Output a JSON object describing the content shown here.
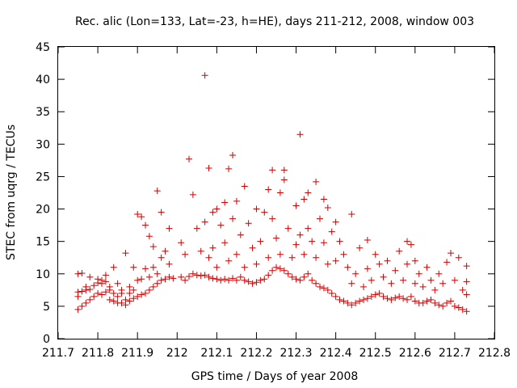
{
  "chart_data": {
    "type": "scatter",
    "title": "Rec. alic (Lon=133, Lat=-23, h=HE), days 211-212, 2008, window 003",
    "xlabel": "GPS time / Days of year 2008",
    "ylabel": "STEC from uqrg / TECUs",
    "xlim": [
      211.7,
      212.8
    ],
    "ylim": [
      0,
      45
    ],
    "x_ticks": [
      "211.7",
      "211.8",
      "211.9",
      "212",
      "212.1",
      "212.2",
      "212.3",
      "212.4",
      "212.5",
      "212.6",
      "212.7",
      "212.8"
    ],
    "y_ticks": [
      "0",
      "5",
      "10",
      "15",
      "20",
      "25",
      "30",
      "35",
      "40",
      "45"
    ],
    "grid": false,
    "legend": "none",
    "marker": "plus",
    "color": "#cc0000",
    "series": [
      {
        "points": [
          [
            211.75,
            4.5
          ],
          [
            211.75,
            6.5
          ],
          [
            211.75,
            7.2
          ],
          [
            211.75,
            10.0
          ],
          [
            211.76,
            5.0
          ],
          [
            211.76,
            7.3
          ],
          [
            211.76,
            10.1
          ],
          [
            211.77,
            5.5
          ],
          [
            211.77,
            7.5
          ],
          [
            211.77,
            8.0
          ],
          [
            211.78,
            6.0
          ],
          [
            211.78,
            7.6
          ],
          [
            211.78,
            9.5
          ],
          [
            211.79,
            6.5
          ],
          [
            211.79,
            8.2
          ],
          [
            211.8,
            7.0
          ],
          [
            211.8,
            8.6
          ],
          [
            211.8,
            9.2
          ],
          [
            211.81,
            6.8
          ],
          [
            211.81,
            8.5
          ],
          [
            211.81,
            9.0
          ],
          [
            211.82,
            7.2
          ],
          [
            211.82,
            8.8
          ],
          [
            211.82,
            9.8
          ],
          [
            211.83,
            6.0
          ],
          [
            211.83,
            7.5
          ],
          [
            211.83,
            8.0
          ],
          [
            211.84,
            5.8
          ],
          [
            211.84,
            7.0
          ],
          [
            211.84,
            11.0
          ],
          [
            211.85,
            5.5
          ],
          [
            211.85,
            6.5
          ],
          [
            211.85,
            8.5
          ],
          [
            211.86,
            5.5
          ],
          [
            211.86,
            7.0
          ],
          [
            211.86,
            7.5
          ],
          [
            211.87,
            5.2
          ],
          [
            211.87,
            6.0
          ],
          [
            211.87,
            13.2
          ],
          [
            211.88,
            5.8
          ],
          [
            211.88,
            7.0
          ],
          [
            211.88,
            8.0
          ],
          [
            211.89,
            6.2
          ],
          [
            211.89,
            7.5
          ],
          [
            211.89,
            11.0
          ],
          [
            211.9,
            6.5
          ],
          [
            211.9,
            9.0
          ],
          [
            211.9,
            19.2
          ],
          [
            211.91,
            6.8
          ],
          [
            211.91,
            9.2
          ],
          [
            211.91,
            18.8
          ],
          [
            211.92,
            7.0
          ],
          [
            211.92,
            10.8
          ],
          [
            211.92,
            17.5
          ],
          [
            211.93,
            7.5
          ],
          [
            211.93,
            9.5
          ],
          [
            211.93,
            15.8
          ],
          [
            211.94,
            8.0
          ],
          [
            211.94,
            11.0
          ],
          [
            211.94,
            14.2
          ],
          [
            211.95,
            8.5
          ],
          [
            211.95,
            10.0
          ],
          [
            211.95,
            22.8
          ],
          [
            211.96,
            9.0
          ],
          [
            211.96,
            12.5
          ],
          [
            211.96,
            19.5
          ],
          [
            211.97,
            9.2
          ],
          [
            211.97,
            13.5
          ],
          [
            211.98,
            9.5
          ],
          [
            211.98,
            11.5
          ],
          [
            211.98,
            17.0
          ],
          [
            211.99,
            9.3
          ],
          [
            212.01,
            9.5
          ],
          [
            212.01,
            14.8
          ],
          [
            212.02,
            9.0
          ],
          [
            212.02,
            13.0
          ],
          [
            212.03,
            9.6
          ],
          [
            212.03,
            27.7
          ],
          [
            212.04,
            10.0
          ],
          [
            212.04,
            22.2
          ],
          [
            212.05,
            9.8
          ],
          [
            212.05,
            17.0
          ],
          [
            212.06,
            9.7
          ],
          [
            212.06,
            13.5
          ],
          [
            212.07,
            9.8
          ],
          [
            212.07,
            40.6
          ],
          [
            212.07,
            18.0
          ],
          [
            212.08,
            9.5
          ],
          [
            212.08,
            26.3
          ],
          [
            212.08,
            12.5
          ],
          [
            212.09,
            9.3
          ],
          [
            212.09,
            14.0
          ],
          [
            212.09,
            19.5
          ],
          [
            212.1,
            9.2
          ],
          [
            212.1,
            11.0
          ],
          [
            212.1,
            20.0
          ],
          [
            212.11,
            9.0
          ],
          [
            212.11,
            17.5
          ],
          [
            212.12,
            9.2
          ],
          [
            212.12,
            14.8
          ],
          [
            212.12,
            21.0
          ],
          [
            212.13,
            9.0
          ],
          [
            212.13,
            26.2
          ],
          [
            212.13,
            12.0
          ],
          [
            212.14,
            9.3
          ],
          [
            212.14,
            28.3
          ],
          [
            212.14,
            18.5
          ],
          [
            212.15,
            9.0
          ],
          [
            212.15,
            13.0
          ],
          [
            212.15,
            21.2
          ],
          [
            212.16,
            9.5
          ],
          [
            212.16,
            16.0
          ],
          [
            212.17,
            9.0
          ],
          [
            212.17,
            23.5
          ],
          [
            212.17,
            11.0
          ],
          [
            212.18,
            8.8
          ],
          [
            212.18,
            17.8
          ],
          [
            212.19,
            8.5
          ],
          [
            212.19,
            14.0
          ],
          [
            212.2,
            8.7
          ],
          [
            212.2,
            11.5
          ],
          [
            212.2,
            20.0
          ],
          [
            212.21,
            9.0
          ],
          [
            212.21,
            15.0
          ],
          [
            212.22,
            9.2
          ],
          [
            212.22,
            19.5
          ],
          [
            212.23,
            9.8
          ],
          [
            212.23,
            12.5
          ],
          [
            212.23,
            23.0
          ],
          [
            212.24,
            10.5
          ],
          [
            212.24,
            18.5
          ],
          [
            212.24,
            26.0
          ],
          [
            212.25,
            11.0
          ],
          [
            212.25,
            15.5
          ],
          [
            212.26,
            10.8
          ],
          [
            212.26,
            22.5
          ],
          [
            212.26,
            13.0
          ],
          [
            212.27,
            10.5
          ],
          [
            212.27,
            26.0
          ],
          [
            212.27,
            24.5
          ],
          [
            212.28,
            10.0
          ],
          [
            212.28,
            17.0
          ],
          [
            212.29,
            9.5
          ],
          [
            212.29,
            12.5
          ],
          [
            212.3,
            9.2
          ],
          [
            212.3,
            20.5
          ],
          [
            212.3,
            14.5
          ],
          [
            212.31,
            9.0
          ],
          [
            212.31,
            31.5
          ],
          [
            212.31,
            16.0
          ],
          [
            212.32,
            9.5
          ],
          [
            212.32,
            21.5
          ],
          [
            212.32,
            13.0
          ],
          [
            212.33,
            10.0
          ],
          [
            212.33,
            22.5
          ],
          [
            212.33,
            17.0
          ],
          [
            212.34,
            9.0
          ],
          [
            212.34,
            15.0
          ],
          [
            212.35,
            8.5
          ],
          [
            212.35,
            24.2
          ],
          [
            212.35,
            12.5
          ],
          [
            212.36,
            8.0
          ],
          [
            212.36,
            18.5
          ],
          [
            212.37,
            7.8
          ],
          [
            212.37,
            21.5
          ],
          [
            212.37,
            14.8
          ],
          [
            212.38,
            7.5
          ],
          [
            212.38,
            20.2
          ],
          [
            212.38,
            11.5
          ],
          [
            212.39,
            7.0
          ],
          [
            212.39,
            16.5
          ],
          [
            212.4,
            6.5
          ],
          [
            212.4,
            18.0
          ],
          [
            212.4,
            12.0
          ],
          [
            212.41,
            6.0
          ],
          [
            212.41,
            15.0
          ],
          [
            212.42,
            5.8
          ],
          [
            212.42,
            13.0
          ],
          [
            212.43,
            5.5
          ],
          [
            212.43,
            11.0
          ],
          [
            212.44,
            5.2
          ],
          [
            212.44,
            19.2
          ],
          [
            212.44,
            8.5
          ],
          [
            212.45,
            5.5
          ],
          [
            212.45,
            10.0
          ],
          [
            212.46,
            5.8
          ],
          [
            212.46,
            14.0
          ],
          [
            212.47,
            6.0
          ],
          [
            212.47,
            8.0
          ],
          [
            212.48,
            6.2
          ],
          [
            212.48,
            15.2
          ],
          [
            212.48,
            10.8
          ],
          [
            212.49,
            6.5
          ],
          [
            212.49,
            9.0
          ],
          [
            212.5,
            6.8
          ],
          [
            212.5,
            13.0
          ],
          [
            212.51,
            7.0
          ],
          [
            212.51,
            11.5
          ],
          [
            212.52,
            6.5
          ],
          [
            212.52,
            9.5
          ],
          [
            212.53,
            6.2
          ],
          [
            212.53,
            12.0
          ],
          [
            212.54,
            6.0
          ],
          [
            212.54,
            8.5
          ],
          [
            212.55,
            6.3
          ],
          [
            212.55,
            10.5
          ],
          [
            212.56,
            6.5
          ],
          [
            212.56,
            13.5
          ],
          [
            212.57,
            6.2
          ],
          [
            212.57,
            9.0
          ],
          [
            212.58,
            6.0
          ],
          [
            212.58,
            15.0
          ],
          [
            212.58,
            11.5
          ],
          [
            212.59,
            6.5
          ],
          [
            212.59,
            14.5
          ],
          [
            212.6,
            5.8
          ],
          [
            212.6,
            8.5
          ],
          [
            212.6,
            12.0
          ],
          [
            212.61,
            5.5
          ],
          [
            212.61,
            10.0
          ],
          [
            212.62,
            5.5
          ],
          [
            212.62,
            8.0
          ],
          [
            212.63,
            5.8
          ],
          [
            212.63,
            11.0
          ],
          [
            212.64,
            6.0
          ],
          [
            212.64,
            9.0
          ],
          [
            212.65,
            5.5
          ],
          [
            212.65,
            7.5
          ],
          [
            212.66,
            5.2
          ],
          [
            212.66,
            10.0
          ],
          [
            212.67,
            5.0
          ],
          [
            212.67,
            8.5
          ],
          [
            212.68,
            5.5
          ],
          [
            212.68,
            11.8
          ],
          [
            212.69,
            5.8
          ],
          [
            212.69,
            13.2
          ],
          [
            212.7,
            5.0
          ],
          [
            212.7,
            9.0
          ],
          [
            212.71,
            4.8
          ],
          [
            212.71,
            12.5
          ],
          [
            212.72,
            4.5
          ],
          [
            212.72,
            7.5
          ],
          [
            212.73,
            4.2
          ],
          [
            212.73,
            8.8
          ],
          [
            212.73,
            11.2
          ],
          [
            212.73,
            6.8
          ]
        ]
      }
    ]
  }
}
